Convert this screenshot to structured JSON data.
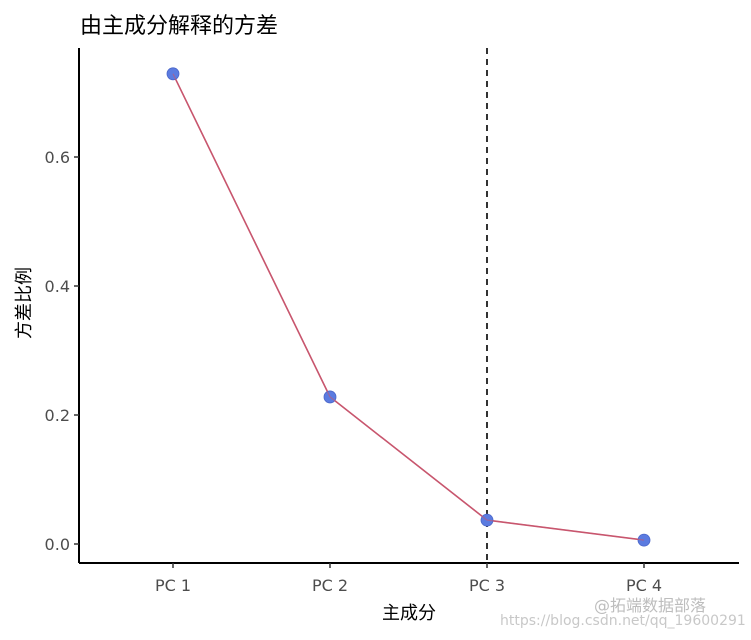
{
  "chart_data": {
    "type": "line",
    "title": "由主成分解释的方差",
    "xlabel": "主成分",
    "ylabel": "方差比例",
    "categories": [
      "PC 1",
      "PC 2",
      "PC 3",
      "PC 4"
    ],
    "values": [
      0.729,
      0.228,
      0.037,
      0.006
    ],
    "yticks": [
      "0.0",
      "0.2",
      "0.4",
      "0.6"
    ],
    "ylim": [
      -0.03,
      0.77
    ],
    "grid": false,
    "legend": "none",
    "vline": {
      "x": "PC 3",
      "style": "dashed",
      "color": "#000000"
    },
    "colors": {
      "line": "#c8566e",
      "point": "#5b7be0"
    }
  },
  "watermark": {
    "brand": "@拓端数据部落",
    "url": "https://blog.csdn.net/qq_19600291"
  }
}
